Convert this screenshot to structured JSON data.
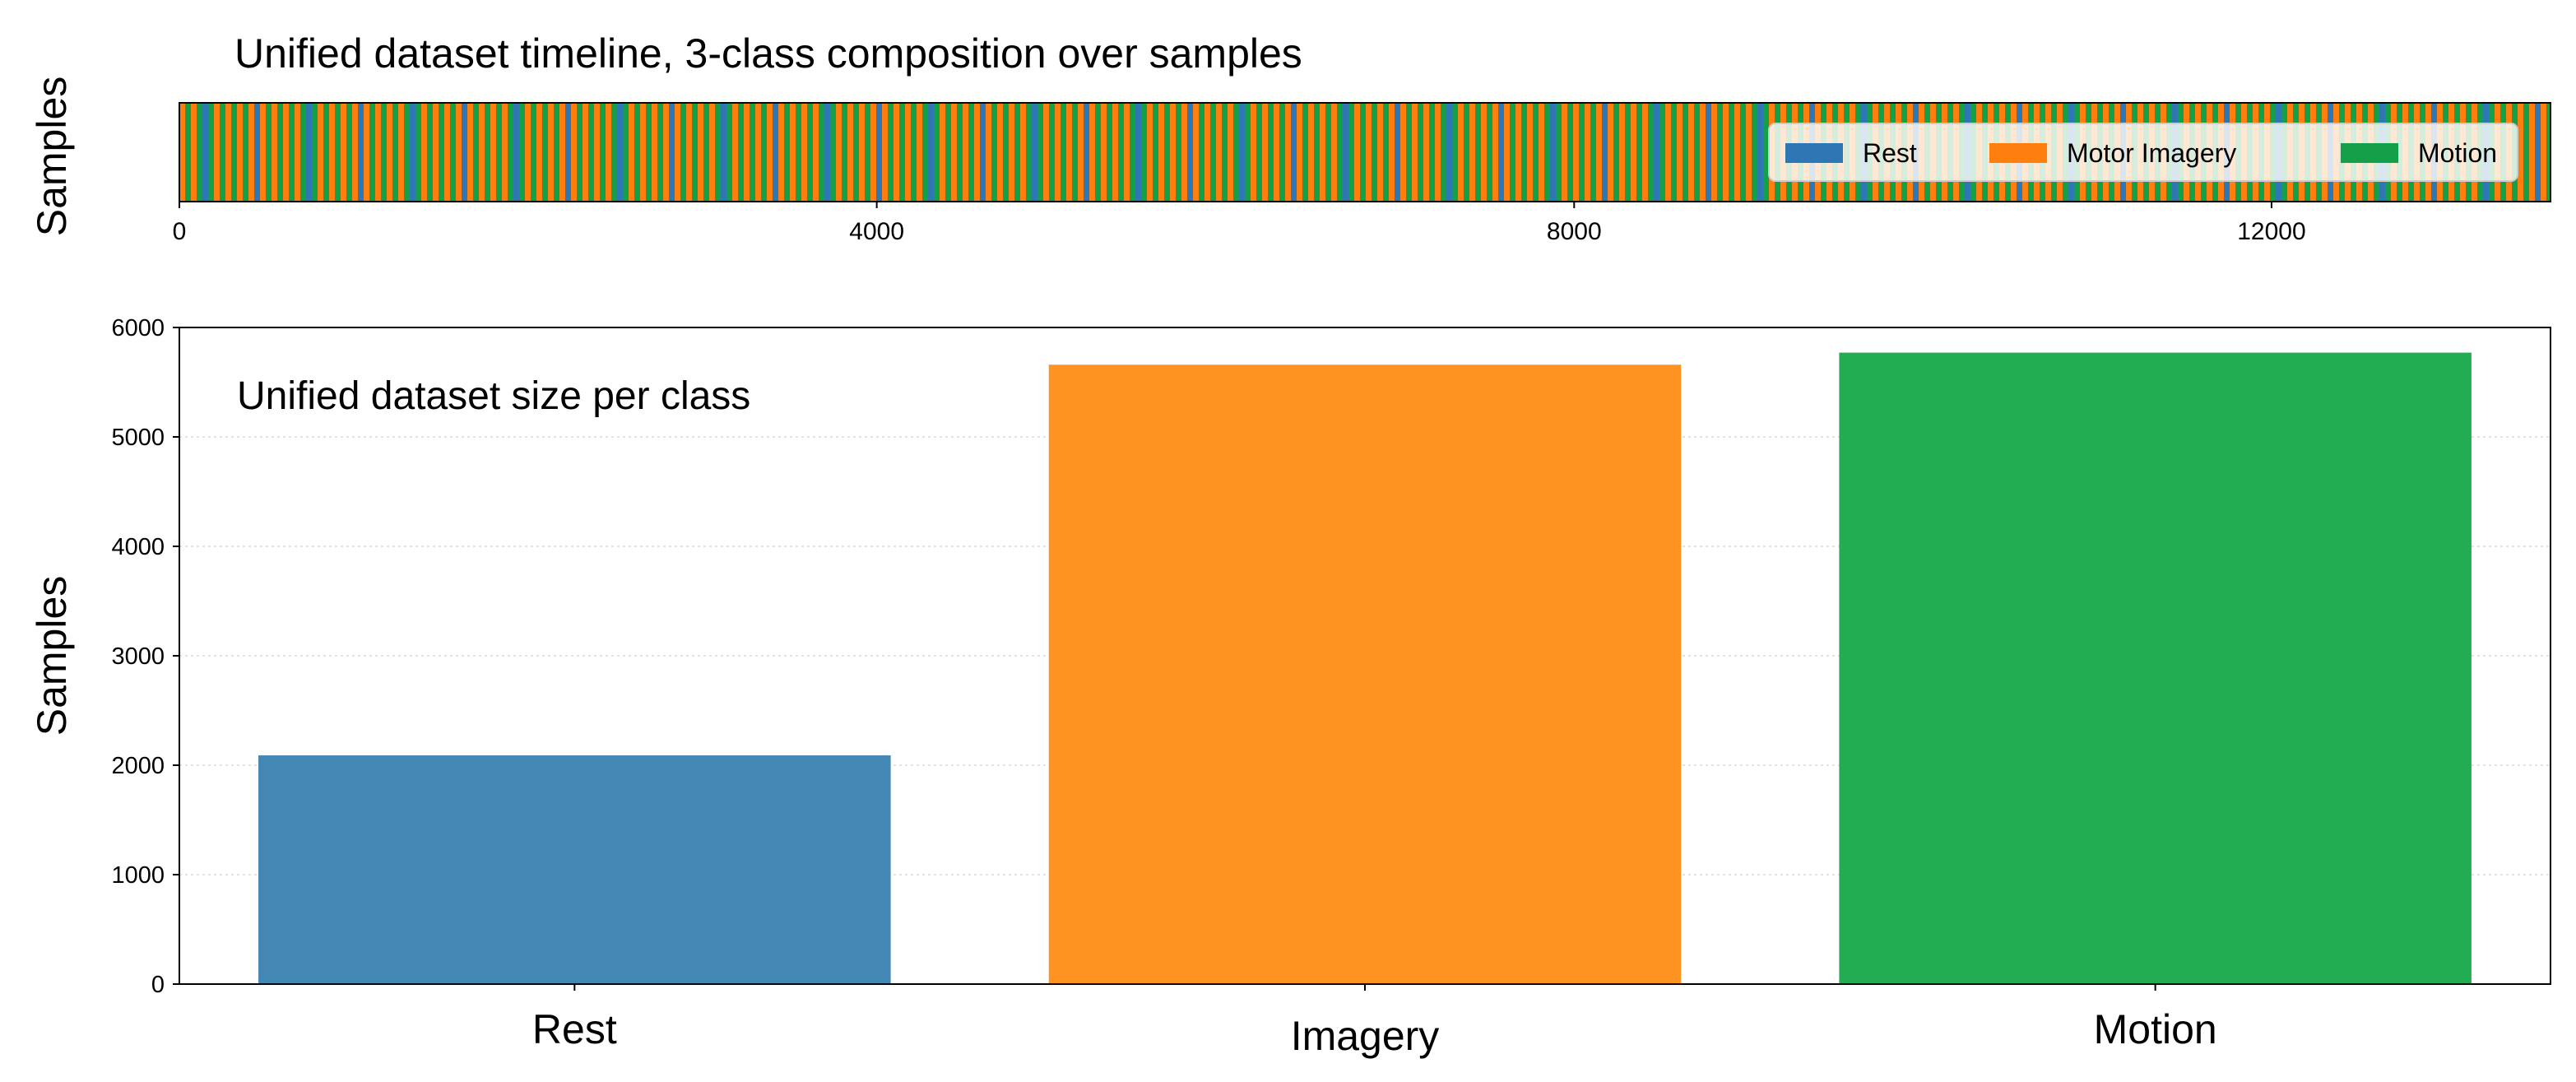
{
  "chart_data": [
    {
      "type": "heatmap",
      "title": "Unified dataset timeline, 3-class composition over samples",
      "ylabel": "Samples",
      "xlabel": "",
      "xlim": [
        0,
        13600
      ],
      "x_ticks": [
        "0",
        "4000",
        "8000",
        "12000"
      ],
      "x_tick_values": [
        0,
        4000,
        8000,
        12000
      ],
      "pattern": "classes alternate in short blocks across the full timeline (Rest, Motor Imagery, Motion), with Rest blocks much sparser than the other two",
      "legend": {
        "placement": "upper-right",
        "entries": [
          {
            "label": "Rest",
            "color": "#2f77b4"
          },
          {
            "label": "Motor Imagery",
            "color": "#ff7f0e"
          },
          {
            "label": "Motion",
            "color": "#13a049"
          }
        ]
      }
    },
    {
      "type": "bar",
      "title": "Unified dataset size per class",
      "xlabel": "",
      "ylabel": "Samples",
      "categories": [
        "Rest",
        "Imagery",
        "Motion"
      ],
      "values": [
        2090,
        5660,
        5770
      ],
      "colors": [
        "#4387b4",
        "#ff9321",
        "#22ad52"
      ],
      "ylim": [
        0,
        6000
      ],
      "y_ticks": [
        "0",
        "1000",
        "2000",
        "3000",
        "4000",
        "5000",
        "6000"
      ],
      "y_tick_values": [
        0,
        1000,
        2000,
        3000,
        4000,
        5000,
        6000
      ],
      "grid": "horizontal dotted"
    }
  ]
}
